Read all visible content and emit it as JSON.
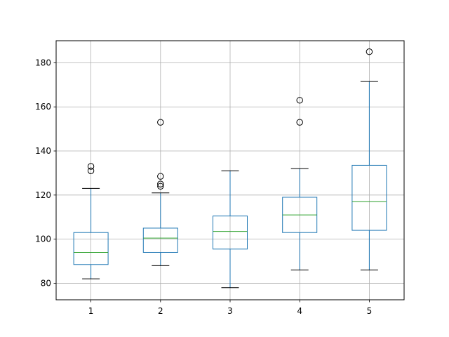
{
  "chart_data": {
    "type": "box",
    "title": "",
    "xlabel": "",
    "ylabel": "",
    "categories": [
      "1",
      "2",
      "3",
      "4",
      "5"
    ],
    "ylim": [
      72.5,
      190
    ],
    "yticks": [
      80,
      100,
      120,
      140,
      160,
      180
    ],
    "grid": true,
    "colors": {
      "box": "#1f77b4",
      "median": "#2ca02c",
      "whisker_cap": "#000000",
      "grid": "#b0b0b0",
      "flier": "#000000"
    },
    "boxes": [
      {
        "category": "1",
        "whisker_low": 82,
        "q1": 88.5,
        "median": 94,
        "q3": 103,
        "whisker_high": 123,
        "fliers": [
          131,
          133
        ]
      },
      {
        "category": "2",
        "whisker_low": 88,
        "q1": 94,
        "median": 100.5,
        "q3": 105,
        "whisker_high": 121,
        "fliers": [
          124,
          125,
          128.5,
          153
        ]
      },
      {
        "category": "3",
        "whisker_low": 78,
        "q1": 95.5,
        "median": 103.5,
        "q3": 110.5,
        "whisker_high": 131,
        "fliers": []
      },
      {
        "category": "4",
        "whisker_low": 86,
        "q1": 103,
        "median": 111,
        "q3": 119,
        "whisker_high": 132,
        "fliers": [
          153,
          163
        ]
      },
      {
        "category": "5",
        "whisker_low": 86,
        "q1": 104,
        "median": 117,
        "q3": 133.5,
        "whisker_high": 171.5,
        "fliers": [
          185
        ]
      }
    ]
  }
}
